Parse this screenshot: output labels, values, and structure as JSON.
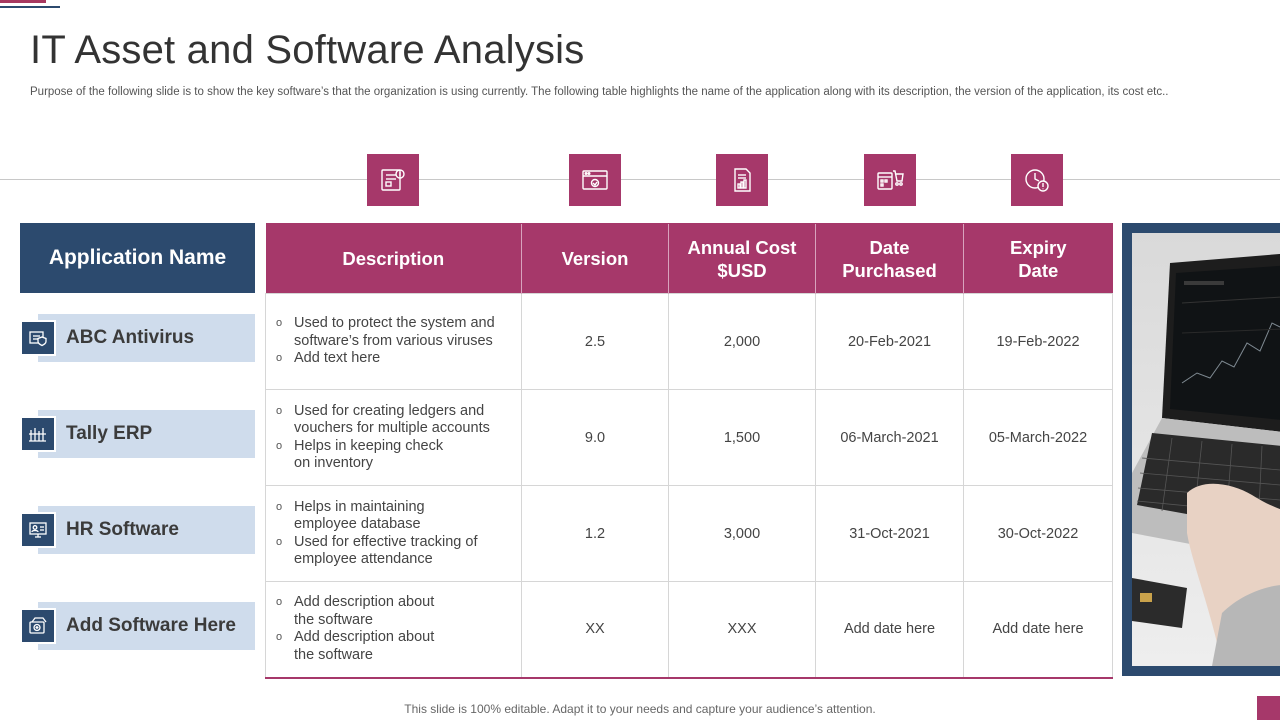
{
  "title": "IT Asset and Software Analysis",
  "subtitle": "Purpose of the following slide is to show the key software’s that the organization is using currently. The following table highlights the name of the application along with its description, the version of the application, its cost etc..",
  "colors": {
    "accent": "#a6386a",
    "navy": "#2c4a6e",
    "row_label_bg": "#cfdcec"
  },
  "column_icons": [
    "software-icon",
    "browser-window-icon",
    "report-document-icon",
    "shopping-cart-calendar-icon",
    "clock-expiry-icon"
  ],
  "app_header": "Application Name",
  "table": {
    "headers": [
      "Description",
      "Version",
      "Annual Cost $USD",
      "Date Purchased",
      "Expiry Date"
    ],
    "rows": [
      {
        "app": "ABC Antivirus",
        "icon": "antivirus-icon",
        "desc": [
          "Used to protect the system and software’s from various viruses",
          "Add text here"
        ],
        "version": "2.5",
        "cost": "2,000",
        "purchased": "20-Feb-2021",
        "expiry": "19-Feb-2022"
      },
      {
        "app": "Tally ERP",
        "icon": "erp-icon",
        "desc": [
          "Used for creating ledgers and vouchers for multiple accounts",
          "Helps in keeping check on inventory"
        ],
        "version": "9.0",
        "cost": "1,500",
        "purchased": "06-March-2021",
        "expiry": "05-March-2022"
      },
      {
        "app": "HR Software",
        "icon": "hr-software-icon",
        "desc": [
          "Helps in maintaining employee database",
          "Used for effective tracking of employee attendance"
        ],
        "version": "1.2",
        "cost": "3,000",
        "purchased": "31-Oct-2021",
        "expiry": "30-Oct-2022"
      },
      {
        "app": "Add Software Here",
        "icon": "add-software-icon",
        "desc": [
          "Add description about the software",
          "Add description about the software"
        ],
        "version": "XX",
        "cost": "XXX",
        "purchased": "Add date here",
        "expiry": "Add date here"
      }
    ]
  },
  "footer": "This slide is 100% editable. Adapt it to your needs and capture your audience’s attention."
}
